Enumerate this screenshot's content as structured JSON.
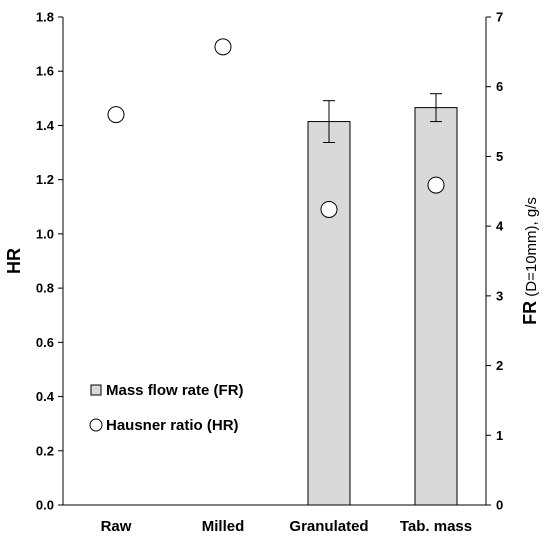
{
  "chart_data": {
    "type": "bar",
    "categories": [
      "Raw",
      "Milled",
      "Granulated",
      "Tab. mass"
    ],
    "series": [
      {
        "name": "Mass flow rate (FR)",
        "type": "bar",
        "axis": "right",
        "values": [
          null,
          null,
          5.5,
          5.7
        ],
        "error": [
          null,
          null,
          0.3,
          0.2
        ],
        "color": "#d9d9d9"
      },
      {
        "name": "Hausner ratio (HR)",
        "type": "scatter",
        "axis": "left",
        "values": [
          1.44,
          1.69,
          1.09,
          1.18
        ],
        "marker": "open-circle"
      }
    ],
    "ylabel": "HR",
    "ylabel2_bold": "FR",
    "ylabel2_rest": " (D=10mm), g/s",
    "ylim": [
      0,
      1.8
    ],
    "ylim2": [
      0,
      7
    ],
    "yticks": [
      "0.0",
      "0.2",
      "0.4",
      "0.6",
      "0.8",
      "1.0",
      "1.2",
      "1.4",
      "1.6",
      "1.8"
    ],
    "yticks2": [
      "0",
      "1",
      "2",
      "3",
      "4",
      "5",
      "6",
      "7"
    ],
    "grid": false,
    "legend_position": "bottom-left"
  }
}
